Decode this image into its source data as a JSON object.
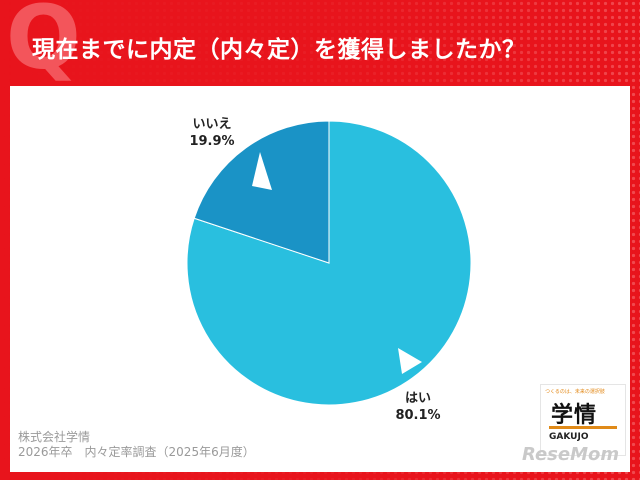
{
  "header": {
    "q_mark": "Q",
    "title": "現在までに内定（内々定）を獲得しましたか？"
  },
  "colors": {
    "header_bg": "#e8141c",
    "yes_slice": "#29bfdf",
    "no_slice": "#1a93c6"
  },
  "chart_data": {
    "type": "pie",
    "title": "現在までに内定（内々定）を獲得しましたか？",
    "slices": [
      {
        "label": "はい",
        "value": 80.1,
        "value_label": "80.1%",
        "color": "#29bfdf"
      },
      {
        "label": "いいえ",
        "value": 19.9,
        "value_label": "19.9%",
        "color": "#1a93c6"
      }
    ],
    "start_angle_deg": 0,
    "direction": "clockwise"
  },
  "source": {
    "line1": "株式会社学情",
    "line2": "2026年卒　内々定率調査（2025年6月度）"
  },
  "logo": {
    "tagline": "つくるのは、未来の選択肢",
    "main": "学情",
    "sub": "GAKUJO"
  },
  "watermark": "ReseMom"
}
